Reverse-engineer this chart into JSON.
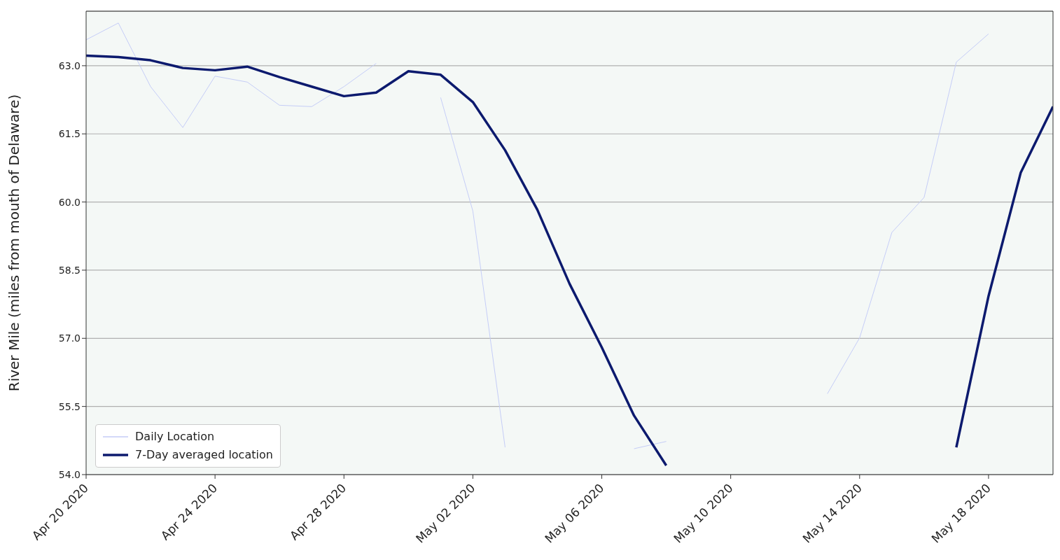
{
  "chart_data": {
    "type": "line",
    "ylabel": "River Mile (miles from mouth of Delaware)",
    "series": [
      {
        "name": "Daily Location",
        "color": "#c5cdf7",
        "x": [
          "2020-04-20",
          "2020-04-21",
          "2020-04-22",
          "2020-04-23",
          "2020-04-24",
          "2020-04-25",
          "2020-04-26",
          "2020-04-27",
          "2020-04-28",
          "2020-04-29",
          "2020-04-30",
          "2020-05-01",
          "2020-05-02",
          "2020-05-03",
          "2020-05-05",
          "2020-05-07",
          "2020-05-08",
          "2020-05-10",
          "2020-05-13",
          "2020-05-14",
          "2020-05-15",
          "2020-05-16",
          "2020-05-17",
          "2020-05-18"
        ],
        "values": [
          63.57,
          63.94,
          62.54,
          61.64,
          62.77,
          62.64,
          62.13,
          62.1,
          62.54,
          63.05,
          null,
          62.3,
          59.8,
          54.6,
          null,
          54.57,
          54.73,
          null,
          55.78,
          57.01,
          59.33,
          60.1,
          63.08,
          63.7
        ]
      },
      {
        "name": "7-Day averaged location",
        "color": "#0c1a6e",
        "x": [
          "2020-04-20",
          "2020-04-21",
          "2020-04-22",
          "2020-04-23",
          "2020-04-24",
          "2020-04-25",
          "2020-04-26",
          "2020-04-27",
          "2020-04-28",
          "2020-04-29",
          "2020-04-30",
          "2020-05-01",
          "2020-05-02",
          "2020-05-03",
          "2020-05-04",
          "2020-05-05",
          "2020-05-06",
          "2020-05-07",
          "2020-05-08",
          "2020-05-12",
          "2020-05-17",
          "2020-05-18",
          "2020-05-19",
          "2020-05-20"
        ],
        "values": [
          63.22,
          63.19,
          63.12,
          62.95,
          62.9,
          62.98,
          62.75,
          62.54,
          62.33,
          62.41,
          62.88,
          62.8,
          62.2,
          61.14,
          59.83,
          58.2,
          56.8,
          55.3,
          54.2,
          null,
          54.6,
          57.93,
          60.65,
          62.1
        ]
      }
    ],
    "xlim": [
      "2020-04-20",
      "2020-05-20"
    ],
    "xticks": [
      {
        "value": "2020-04-20",
        "label": "Apr 20 2020"
      },
      {
        "value": "2020-04-24",
        "label": "Apr 24 2020"
      },
      {
        "value": "2020-04-28",
        "label": "Apr 28 2020"
      },
      {
        "value": "2020-05-02",
        "label": "May 02 2020"
      },
      {
        "value": "2020-05-06",
        "label": "May 06 2020"
      },
      {
        "value": "2020-05-10",
        "label": "May 10 2020"
      },
      {
        "value": "2020-05-14",
        "label": "May 14 2020"
      },
      {
        "value": "2020-05-18",
        "label": "May 18 2020"
      }
    ],
    "ylim": [
      54,
      64.2
    ],
    "yticks": [
      {
        "value": 54,
        "label": "54.0"
      },
      {
        "value": 55.5,
        "label": "55.5"
      },
      {
        "value": 57,
        "label": "57.0"
      },
      {
        "value": 58.5,
        "label": "58.5"
      },
      {
        "value": 60,
        "label": "60.0"
      },
      {
        "value": 61.5,
        "label": "61.5"
      },
      {
        "value": 63,
        "label": "63.0"
      }
    ],
    "grid": "y",
    "legend": "bottom left",
    "marker": "none",
    "line_style": "solid"
  }
}
